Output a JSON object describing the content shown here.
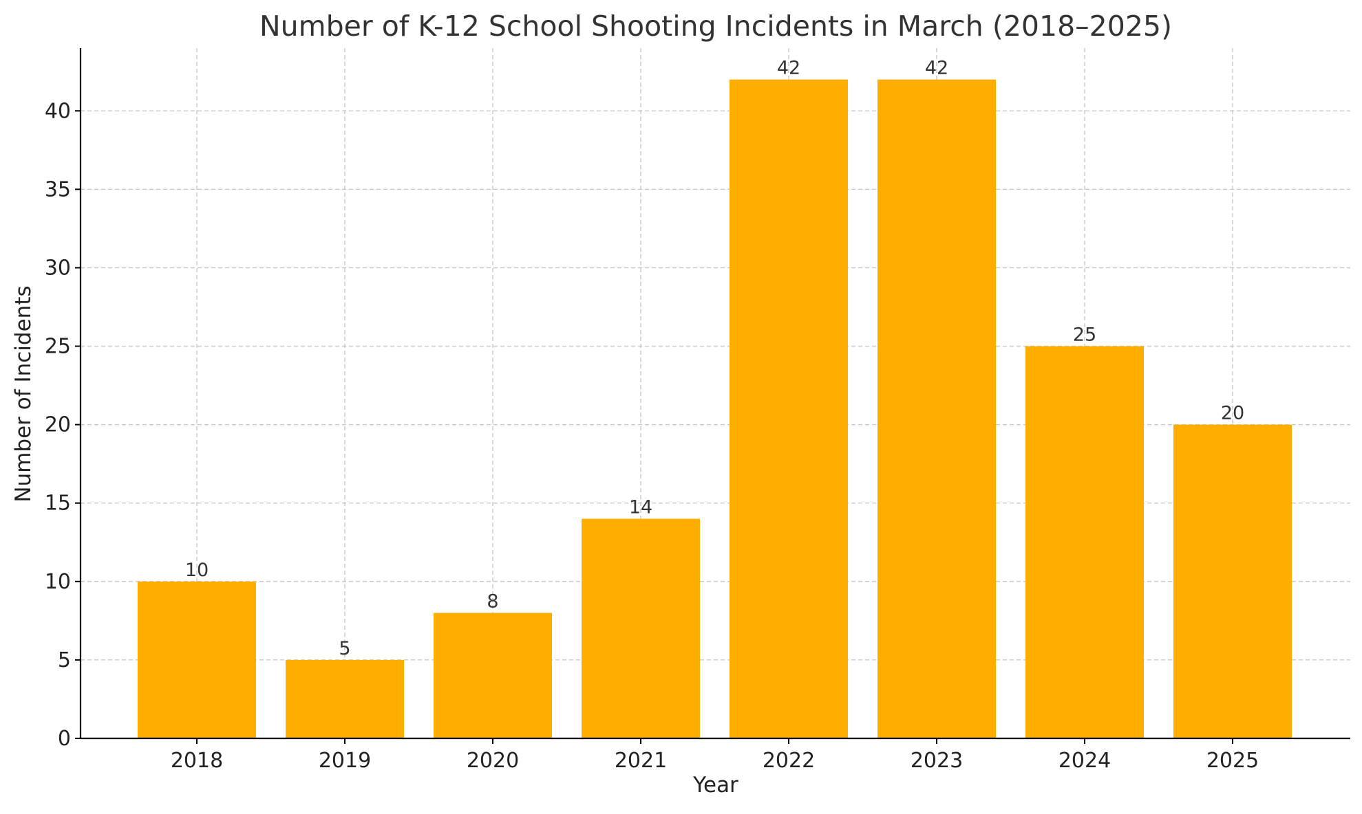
{
  "chart_data": {
    "type": "bar",
    "title": "Number of K-12 School Shooting Incidents in March (2018–2025)",
    "xlabel": "Year",
    "ylabel": "Number of Incidents",
    "categories": [
      "2018",
      "2019",
      "2020",
      "2021",
      "2022",
      "2023",
      "2024",
      "2025"
    ],
    "values": [
      10,
      5,
      8,
      14,
      42,
      42,
      25,
      20
    ],
    "ylim": [
      0,
      44
    ],
    "yticks": [
      0,
      5,
      10,
      15,
      20,
      25,
      30,
      35,
      40
    ],
    "bar_color": "#FFAE00",
    "grid": true,
    "legend": "none",
    "data_labels": true
  }
}
